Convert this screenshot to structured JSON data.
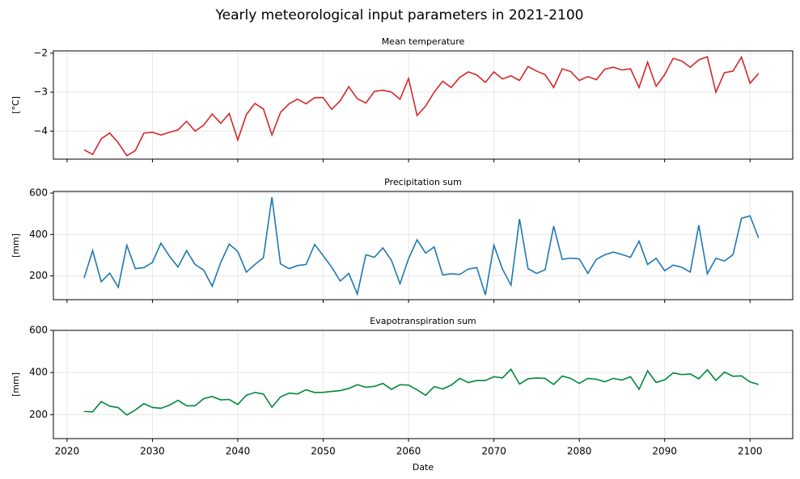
{
  "title": "Yearly meteorological input parameters in 2021-2100",
  "chart_data": [
    {
      "type": "line",
      "title": "Mean temperature",
      "y_label": "[°C]",
      "color": "#d62728",
      "grid": true,
      "x": [
        2022,
        2023,
        2024,
        2025,
        2026,
        2027,
        2028,
        2029,
        2030,
        2031,
        2032,
        2033,
        2034,
        2035,
        2036,
        2037,
        2038,
        2039,
        2040,
        2041,
        2042,
        2043,
        2044,
        2045,
        2046,
        2047,
        2048,
        2049,
        2050,
        2051,
        2052,
        2053,
        2054,
        2055,
        2056,
        2057,
        2058,
        2059,
        2060,
        2061,
        2062,
        2063,
        2064,
        2065,
        2066,
        2067,
        2068,
        2069,
        2070,
        2071,
        2072,
        2073,
        2074,
        2075,
        2076,
        2077,
        2078,
        2079,
        2080,
        2081,
        2082,
        2083,
        2084,
        2085,
        2086,
        2087,
        2088,
        2089,
        2090,
        2091,
        2092,
        2093,
        2094,
        2095,
        2096,
        2097,
        2098,
        2099,
        2100,
        2101
      ],
      "values": [
        -4.48,
        -4.6,
        -4.2,
        -4.05,
        -4.3,
        -4.63,
        -4.5,
        -4.05,
        -4.03,
        -4.1,
        -4.03,
        -3.97,
        -3.75,
        -4.0,
        -3.85,
        -3.56,
        -3.8,
        -3.55,
        -4.23,
        -3.58,
        -3.29,
        -3.43,
        -4.1,
        -3.52,
        -3.3,
        -3.18,
        -3.3,
        -3.14,
        -3.14,
        -3.44,
        -3.22,
        -2.86,
        -3.17,
        -3.28,
        -2.98,
        -2.95,
        -3.0,
        -3.18,
        -2.65,
        -3.6,
        -3.36,
        -3.0,
        -2.72,
        -2.88,
        -2.62,
        -2.48,
        -2.56,
        -2.75,
        -2.48,
        -2.66,
        -2.58,
        -2.7,
        -2.34,
        -2.46,
        -2.55,
        -2.88,
        -2.4,
        -2.47,
        -2.7,
        -2.6,
        -2.68,
        -2.41,
        -2.36,
        -2.43,
        -2.4,
        -2.88,
        -2.23,
        -2.85,
        -2.55,
        -2.13,
        -2.2,
        -2.36,
        -2.17,
        -2.09,
        -3.0,
        -2.5,
        -2.46,
        -2.1,
        -2.77,
        -2.52
      ],
      "xlim": [
        2018.4,
        2105.0
      ],
      "xticks": [
        2020,
        2030,
        2040,
        2050,
        2060,
        2070,
        2080,
        2090,
        2100
      ],
      "ylim": [
        -4.72,
        -1.94
      ],
      "yticks": [
        {
          "value": -4,
          "label": "−4"
        },
        {
          "value": -3,
          "label": "−3"
        },
        {
          "value": -2,
          "label": "−2"
        }
      ]
    },
    {
      "type": "line",
      "title": "Precipitation sum",
      "y_label": "[mm]",
      "color": "#1f77b4",
      "grid": true,
      "x": [
        2022,
        2023,
        2024,
        2025,
        2026,
        2027,
        2028,
        2029,
        2030,
        2031,
        2032,
        2033,
        2034,
        2035,
        2036,
        2037,
        2038,
        2039,
        2040,
        2041,
        2042,
        2043,
        2044,
        2045,
        2046,
        2047,
        2048,
        2049,
        2050,
        2051,
        2052,
        2053,
        2054,
        2055,
        2056,
        2057,
        2058,
        2059,
        2060,
        2061,
        2062,
        2063,
        2064,
        2065,
        2066,
        2067,
        2068,
        2069,
        2070,
        2071,
        2072,
        2073,
        2074,
        2075,
        2076,
        2077,
        2078,
        2079,
        2080,
        2081,
        2082,
        2083,
        2084,
        2085,
        2086,
        2087,
        2088,
        2089,
        2090,
        2091,
        2092,
        2093,
        2094,
        2095,
        2096,
        2097,
        2098,
        2099,
        2100,
        2101
      ],
      "values": [
        190,
        322,
        172,
        213,
        145,
        348,
        235,
        240,
        265,
        358,
        295,
        243,
        322,
        255,
        228,
        150,
        265,
        353,
        318,
        218,
        255,
        288,
        580,
        258,
        235,
        250,
        255,
        352,
        298,
        242,
        175,
        212,
        112,
        302,
        290,
        335,
        275,
        162,
        283,
        374,
        310,
        340,
        205,
        210,
        207,
        233,
        240,
        108,
        348,
        233,
        155,
        475,
        235,
        212,
        230,
        440,
        280,
        286,
        282,
        212,
        280,
        302,
        315,
        303,
        290,
        368,
        255,
        285,
        225,
        252,
        242,
        218,
        445,
        210,
        285,
        272,
        302,
        478,
        490,
        383
      ],
      "xlim": [
        2018.4,
        2105.0
      ],
      "xticks": [
        2020,
        2030,
        2040,
        2050,
        2060,
        2070,
        2080,
        2090,
        2100
      ],
      "ylim": [
        85,
        608
      ],
      "yticks": [
        200,
        400,
        600
      ]
    },
    {
      "type": "line",
      "title": "Evapotranspiration sum",
      "y_label": "[mm]",
      "x_label": "Date",
      "color": "#00883a",
      "grid": true,
      "x": [
        2022,
        2023,
        2024,
        2025,
        2026,
        2027,
        2028,
        2029,
        2030,
        2031,
        2032,
        2033,
        2034,
        2035,
        2036,
        2037,
        2038,
        2039,
        2040,
        2041,
        2042,
        2043,
        2044,
        2045,
        2046,
        2047,
        2048,
        2049,
        2050,
        2051,
        2052,
        2053,
        2054,
        2055,
        2056,
        2057,
        2058,
        2059,
        2060,
        2061,
        2062,
        2063,
        2064,
        2065,
        2066,
        2067,
        2068,
        2069,
        2070,
        2071,
        2072,
        2073,
        2074,
        2075,
        2076,
        2077,
        2078,
        2079,
        2080,
        2081,
        2082,
        2083,
        2084,
        2085,
        2086,
        2087,
        2088,
        2089,
        2090,
        2091,
        2092,
        2093,
        2094,
        2095,
        2096,
        2097,
        2098,
        2099,
        2100,
        2101
      ],
      "values": [
        215,
        213,
        262,
        240,
        233,
        198,
        222,
        252,
        234,
        230,
        245,
        268,
        242,
        242,
        276,
        286,
        270,
        272,
        248,
        292,
        305,
        298,
        235,
        284,
        302,
        298,
        318,
        305,
        306,
        310,
        314,
        324,
        342,
        330,
        334,
        348,
        320,
        342,
        340,
        318,
        292,
        333,
        322,
        340,
        372,
        352,
        362,
        362,
        380,
        374,
        415,
        345,
        370,
        374,
        372,
        343,
        383,
        372,
        348,
        372,
        368,
        356,
        372,
        364,
        380,
        320,
        408,
        353,
        365,
        398,
        390,
        393,
        370,
        413,
        362,
        402,
        382,
        384,
        355,
        343
      ],
      "xlim": [
        2018.4,
        2105.0
      ],
      "xticks": [
        2020,
        2030,
        2040,
        2050,
        2060,
        2070,
        2080,
        2090,
        2100
      ],
      "ylim": [
        86,
        600
      ],
      "yticks": [
        200,
        400,
        600
      ]
    }
  ]
}
